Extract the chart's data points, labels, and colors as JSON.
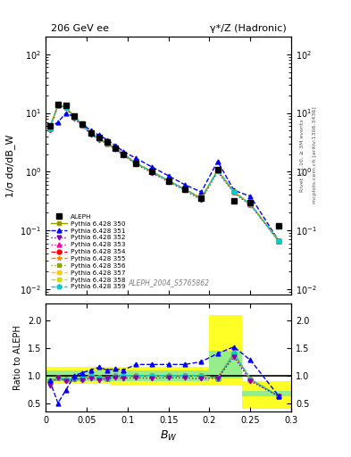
{
  "title_left": "206 GeV ee",
  "title_right": "γ*/Z (Hadronic)",
  "xlabel": "B_W",
  "ylabel_main": "1/σ dσ/dB_W",
  "ylabel_ratio": "Ratio to ALEPH",
  "right_label": "Rivet 3.1.10, ≥ 3M events",
  "right_label2": "mcplots.cern.ch [arXiv:1306.3436]",
  "watermark": "ALEPH_2004_S5765862",
  "aleph_x": [
    0.005,
    0.015,
    0.025,
    0.035,
    0.045,
    0.055,
    0.065,
    0.075,
    0.085,
    0.095,
    0.11,
    0.13,
    0.15,
    0.17,
    0.19,
    0.21,
    0.23,
    0.25,
    0.285
  ],
  "aleph_y": [
    6.0,
    14.0,
    13.5,
    9.0,
    6.5,
    4.5,
    3.8,
    3.2,
    2.5,
    2.0,
    1.4,
    1.0,
    0.7,
    0.5,
    0.35,
    1.1,
    0.32,
    0.3,
    0.12
  ],
  "p350_y": [
    5.5,
    13.5,
    12.5,
    8.5,
    6.2,
    4.5,
    3.7,
    3.0,
    2.5,
    2.0,
    1.4,
    1.0,
    0.7,
    0.5,
    0.35,
    1.05,
    0.45,
    0.28,
    0.065
  ],
  "p351_y": [
    5.5,
    7.0,
    10.0,
    8.5,
    6.5,
    5.0,
    4.2,
    3.5,
    2.8,
    2.2,
    1.7,
    1.2,
    0.85,
    0.6,
    0.45,
    1.5,
    0.48,
    0.38,
    0.065
  ],
  "p352_y": [
    5.0,
    13.5,
    12.0,
    8.0,
    6.0,
    4.3,
    3.5,
    3.0,
    2.4,
    1.9,
    1.35,
    0.95,
    0.67,
    0.48,
    0.33,
    1.0,
    0.43,
    0.27,
    0.065
  ],
  "p353_y": [
    5.5,
    13.5,
    12.5,
    8.5,
    6.2,
    4.5,
    3.7,
    3.0,
    2.5,
    2.0,
    1.4,
    1.0,
    0.7,
    0.5,
    0.35,
    1.05,
    0.45,
    0.28,
    0.065
  ],
  "p354_y": [
    5.5,
    13.5,
    12.5,
    8.5,
    6.2,
    4.5,
    3.7,
    3.0,
    2.5,
    2.0,
    1.4,
    1.0,
    0.7,
    0.5,
    0.35,
    1.05,
    0.45,
    0.28,
    0.065
  ],
  "p355_y": [
    5.5,
    13.5,
    12.5,
    8.5,
    6.2,
    4.5,
    3.7,
    3.0,
    2.5,
    2.0,
    1.4,
    1.0,
    0.7,
    0.5,
    0.35,
    1.05,
    0.45,
    0.28,
    0.065
  ],
  "p356_y": [
    5.5,
    13.5,
    12.5,
    8.5,
    6.2,
    4.5,
    3.7,
    3.0,
    2.5,
    2.0,
    1.4,
    1.0,
    0.7,
    0.5,
    0.35,
    1.05,
    0.45,
    0.28,
    0.065
  ],
  "p357_y": [
    5.5,
    13.5,
    12.5,
    8.5,
    6.2,
    4.5,
    3.7,
    3.0,
    2.5,
    2.0,
    1.4,
    1.0,
    0.7,
    0.5,
    0.35,
    1.05,
    0.45,
    0.28,
    0.065
  ],
  "p358_y": [
    5.5,
    13.5,
    12.5,
    8.5,
    6.2,
    4.5,
    3.7,
    3.0,
    2.5,
    2.0,
    1.4,
    1.0,
    0.7,
    0.5,
    0.35,
    1.05,
    0.45,
    0.28,
    0.065
  ],
  "p359_y": [
    5.5,
    13.5,
    12.5,
    8.5,
    6.2,
    4.5,
    3.7,
    3.0,
    2.5,
    2.0,
    1.4,
    1.0,
    0.7,
    0.5,
    0.35,
    1.05,
    0.45,
    0.28,
    0.065
  ],
  "ratio_351": [
    0.91,
    0.5,
    0.74,
    1.0,
    1.05,
    1.1,
    1.15,
    1.1,
    1.12,
    1.1,
    1.2,
    1.2,
    1.2,
    1.2,
    1.25,
    1.4,
    1.52,
    1.28,
    0.62
  ],
  "ratio_352": [
    0.82,
    0.97,
    0.89,
    0.94,
    0.92,
    0.95,
    0.92,
    0.94,
    0.96,
    0.95,
    0.96,
    0.95,
    0.96,
    0.96,
    0.94,
    0.95,
    1.34,
    0.9,
    0.62
  ],
  "ratio_others": [
    0.9,
    0.96,
    0.93,
    0.94,
    0.95,
    1.0,
    0.97,
    0.94,
    1.0,
    1.0,
    1.0,
    1.0,
    1.0,
    1.0,
    1.0,
    0.95,
    1.4,
    0.93,
    0.62
  ],
  "band_edges": [
    0.0,
    0.01,
    0.02,
    0.03,
    0.04,
    0.05,
    0.06,
    0.07,
    0.08,
    0.09,
    0.1,
    0.12,
    0.14,
    0.16,
    0.18,
    0.2,
    0.22,
    0.24,
    0.26,
    0.28,
    0.3
  ],
  "green_lo": [
    0.9,
    0.9,
    0.9,
    0.9,
    0.9,
    0.9,
    0.9,
    0.9,
    0.9,
    0.9,
    0.9,
    0.9,
    0.9,
    0.9,
    0.9,
    0.95,
    0.95,
    0.62,
    0.62,
    0.62
  ],
  "green_hi": [
    1.1,
    1.1,
    1.1,
    1.1,
    1.1,
    1.1,
    1.1,
    1.1,
    1.1,
    1.1,
    1.1,
    1.1,
    1.1,
    1.1,
    1.1,
    1.45,
    1.45,
    0.72,
    0.72,
    0.72
  ],
  "yellow_lo": [
    0.85,
    0.85,
    0.85,
    0.85,
    0.85,
    0.85,
    0.85,
    0.85,
    0.82,
    0.82,
    0.82,
    0.82,
    0.82,
    0.82,
    0.82,
    0.82,
    0.82,
    0.4,
    0.4,
    0.4
  ],
  "yellow_hi": [
    1.15,
    1.15,
    1.15,
    1.15,
    1.15,
    1.15,
    1.15,
    1.15,
    1.15,
    1.15,
    1.15,
    1.15,
    1.15,
    1.15,
    1.15,
    2.1,
    2.1,
    0.9,
    0.9,
    0.9
  ],
  "color_350": "#999900",
  "color_351": "#0000ff",
  "color_352": "#8800aa",
  "color_353": "#ff00aa",
  "color_354": "#ff0000",
  "color_355": "#ff8800",
  "color_356": "#88aa00",
  "color_357": "#ffcc00",
  "color_358": "#ccdd00",
  "color_359": "#00cccc",
  "ylim_main": [
    0.008,
    200
  ],
  "ylim_ratio": [
    0.35,
    2.3
  ],
  "xlim": [
    0.0,
    0.3
  ]
}
